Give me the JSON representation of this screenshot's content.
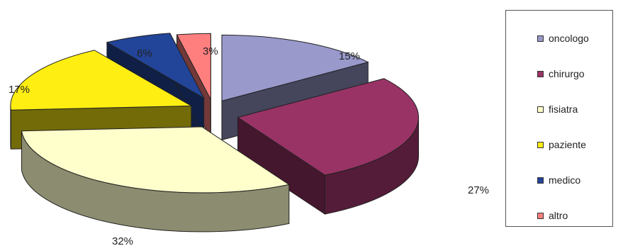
{
  "chart_data": {
    "type": "pie",
    "title": "",
    "categories": [
      "oncologo",
      "chirurgo",
      "fisiatra",
      "paziente",
      "medico",
      "altro"
    ],
    "values": [
      15,
      27,
      32,
      17,
      6,
      3
    ],
    "labels": [
      "15%",
      "27%",
      "32%",
      "17%",
      "6%",
      "3%"
    ],
    "colors": [
      "#9999cc",
      "#993366",
      "#ffffcc",
      "#ffee11",
      "#224499",
      "#ff7f7f"
    ],
    "exploded": true,
    "three_d": true,
    "legend": {
      "placement": "right",
      "entries": [
        "oncologo",
        "chirurgo",
        "fisiatra",
        "paziente",
        "medico",
        "altro"
      ]
    }
  }
}
